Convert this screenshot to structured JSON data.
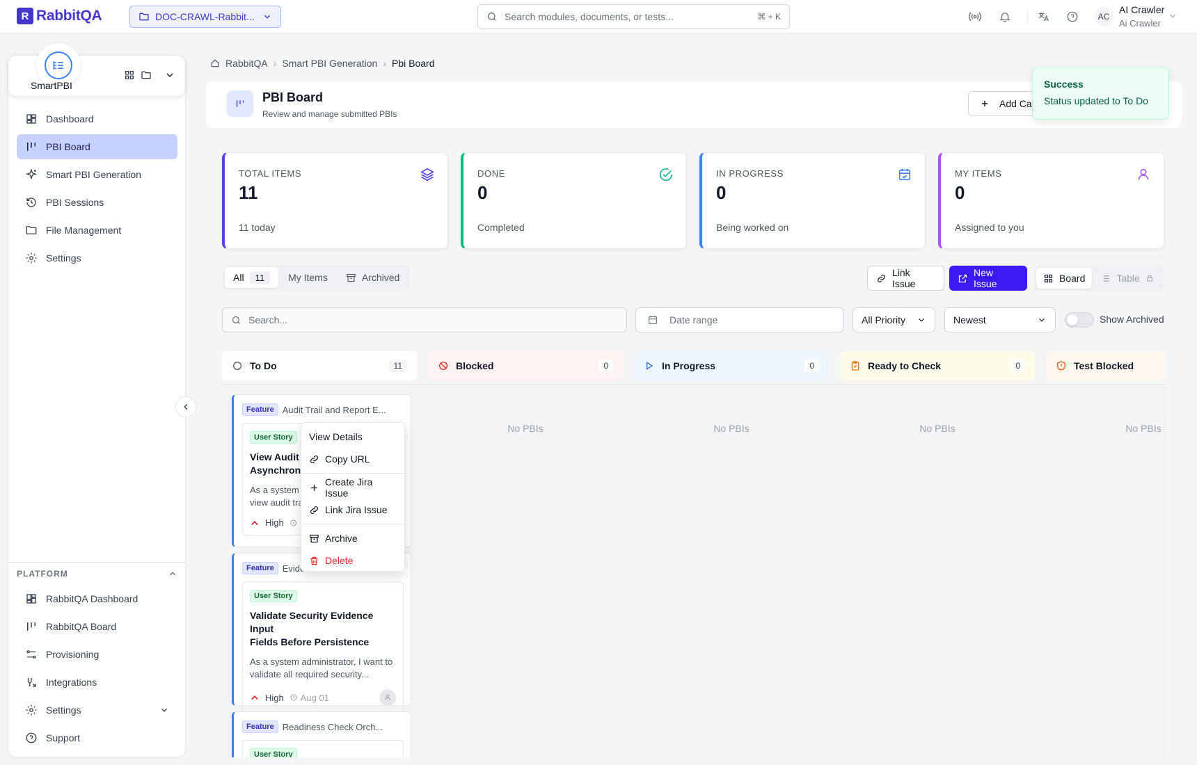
{
  "app": {
    "logo_letter": "R",
    "name": "RabbitQA"
  },
  "project": {
    "name": "DOC-CRAWL-Rabbit..."
  },
  "search": {
    "placeholder": "Search modules, documents, or tests...",
    "shortcut": "⌘ + K"
  },
  "user": {
    "initials": "AC",
    "name": "AI Crawler",
    "role": "Ai Crawler"
  },
  "sidebar": {
    "app_name": "SmartPBI",
    "items": [
      {
        "label": "Dashboard",
        "icon": "dashboard-icon"
      },
      {
        "label": "PBI Board",
        "icon": "board-icon",
        "active": true
      },
      {
        "label": "Smart PBI Generation",
        "icon": "sparkle-icon"
      },
      {
        "label": "PBI Sessions",
        "icon": "history-icon"
      },
      {
        "label": "File Management",
        "icon": "folder-icon"
      },
      {
        "label": "Settings",
        "icon": "gear-icon"
      }
    ],
    "platform_label": "PLATFORM",
    "platform_items": [
      {
        "label": "RabbitQA Dashboard",
        "icon": "dashboard-icon"
      },
      {
        "label": "RabbitQA Board",
        "icon": "board-icon"
      },
      {
        "label": "Provisioning",
        "icon": "provisioning-icon"
      },
      {
        "label": "Integrations",
        "icon": "integrations-icon"
      },
      {
        "label": "Settings",
        "icon": "gear-icon"
      },
      {
        "label": "Support",
        "icon": "help-icon"
      }
    ]
  },
  "breadcrumb": {
    "items": [
      "RabbitQA",
      "Smart PBI Generation",
      "Pbi Board"
    ]
  },
  "header": {
    "title": "PBI Board",
    "subtitle": "Review and manage submitted PBIs",
    "add_button": "Add Ca"
  },
  "toast": {
    "title": "Success",
    "message": "Status updated to To Do"
  },
  "stats": [
    {
      "label": "TOTAL ITEMS",
      "value": "11",
      "sub": "11 today",
      "color": "#4f46e5"
    },
    {
      "label": "DONE",
      "value": "0",
      "sub": "Completed",
      "color": "#10b981"
    },
    {
      "label": "IN PROGRESS",
      "value": "0",
      "sub": "Being worked on",
      "color": "#3b82f6"
    },
    {
      "label": "MY ITEMS",
      "value": "0",
      "sub": "Assigned to you",
      "color": "#a855f7"
    }
  ],
  "tabs": {
    "all": "All",
    "all_count": "11",
    "my_items": "My Items",
    "archived": "Archived"
  },
  "actions": {
    "link_issue": "Link Issue",
    "new_issue": "New Issue",
    "board": "Board",
    "table": "Table"
  },
  "filters": {
    "search_placeholder": "Search...",
    "date_placeholder": "Date range",
    "priority": "All Priority",
    "sort": "Newest",
    "show_archived": "Show Archived"
  },
  "columns": [
    {
      "name": "To Do",
      "count": "11",
      "icon": "circle-icon",
      "bg": "#ffffff"
    },
    {
      "name": "Blocked",
      "count": "0",
      "icon": "ban-icon",
      "bg": "#fef2f2"
    },
    {
      "name": "In Progress",
      "count": "0",
      "icon": "play-icon",
      "bg": "#eff6ff"
    },
    {
      "name": "Ready to Check",
      "count": "0",
      "icon": "clipboard-icon",
      "bg": "#fffbeb"
    },
    {
      "name": "Test Blocked",
      "count": "",
      "icon": "shield-alert-icon",
      "bg": "#fff7ed"
    }
  ],
  "empty_label": "No PBIs",
  "cards": [
    {
      "feature_badge": "Feature",
      "feature": "Audit Trail and Report E...",
      "story_badge": "User Story",
      "title": "View Audit T... Asynchrono...",
      "title_l1": "View Audit T",
      "title_l2": "Asynchrono",
      "desc_l1": "As a system",
      "desc_l2": "view audit tra",
      "priority": "High",
      "date": ""
    },
    {
      "feature_badge": "Feature",
      "feature": "Evide",
      "story_badge": "User Story",
      "title_l1": "Validate Security Evidence Input",
      "title_l2": "Fields Before Persistence",
      "desc_l1": "As a system administrator, I want to",
      "desc_l2": "validate all required security...",
      "priority": "High",
      "date": "Aug 01"
    },
    {
      "feature_badge": "Feature",
      "feature": "Readiness Check Orch...",
      "story_badge": "User Story"
    }
  ],
  "context_menu": {
    "view_details": "View Details",
    "copy_url": "Copy URL",
    "create_jira": "Create Jira Issue",
    "link_jira": "Link Jira Issue",
    "archive": "Archive",
    "delete": "Delete"
  }
}
